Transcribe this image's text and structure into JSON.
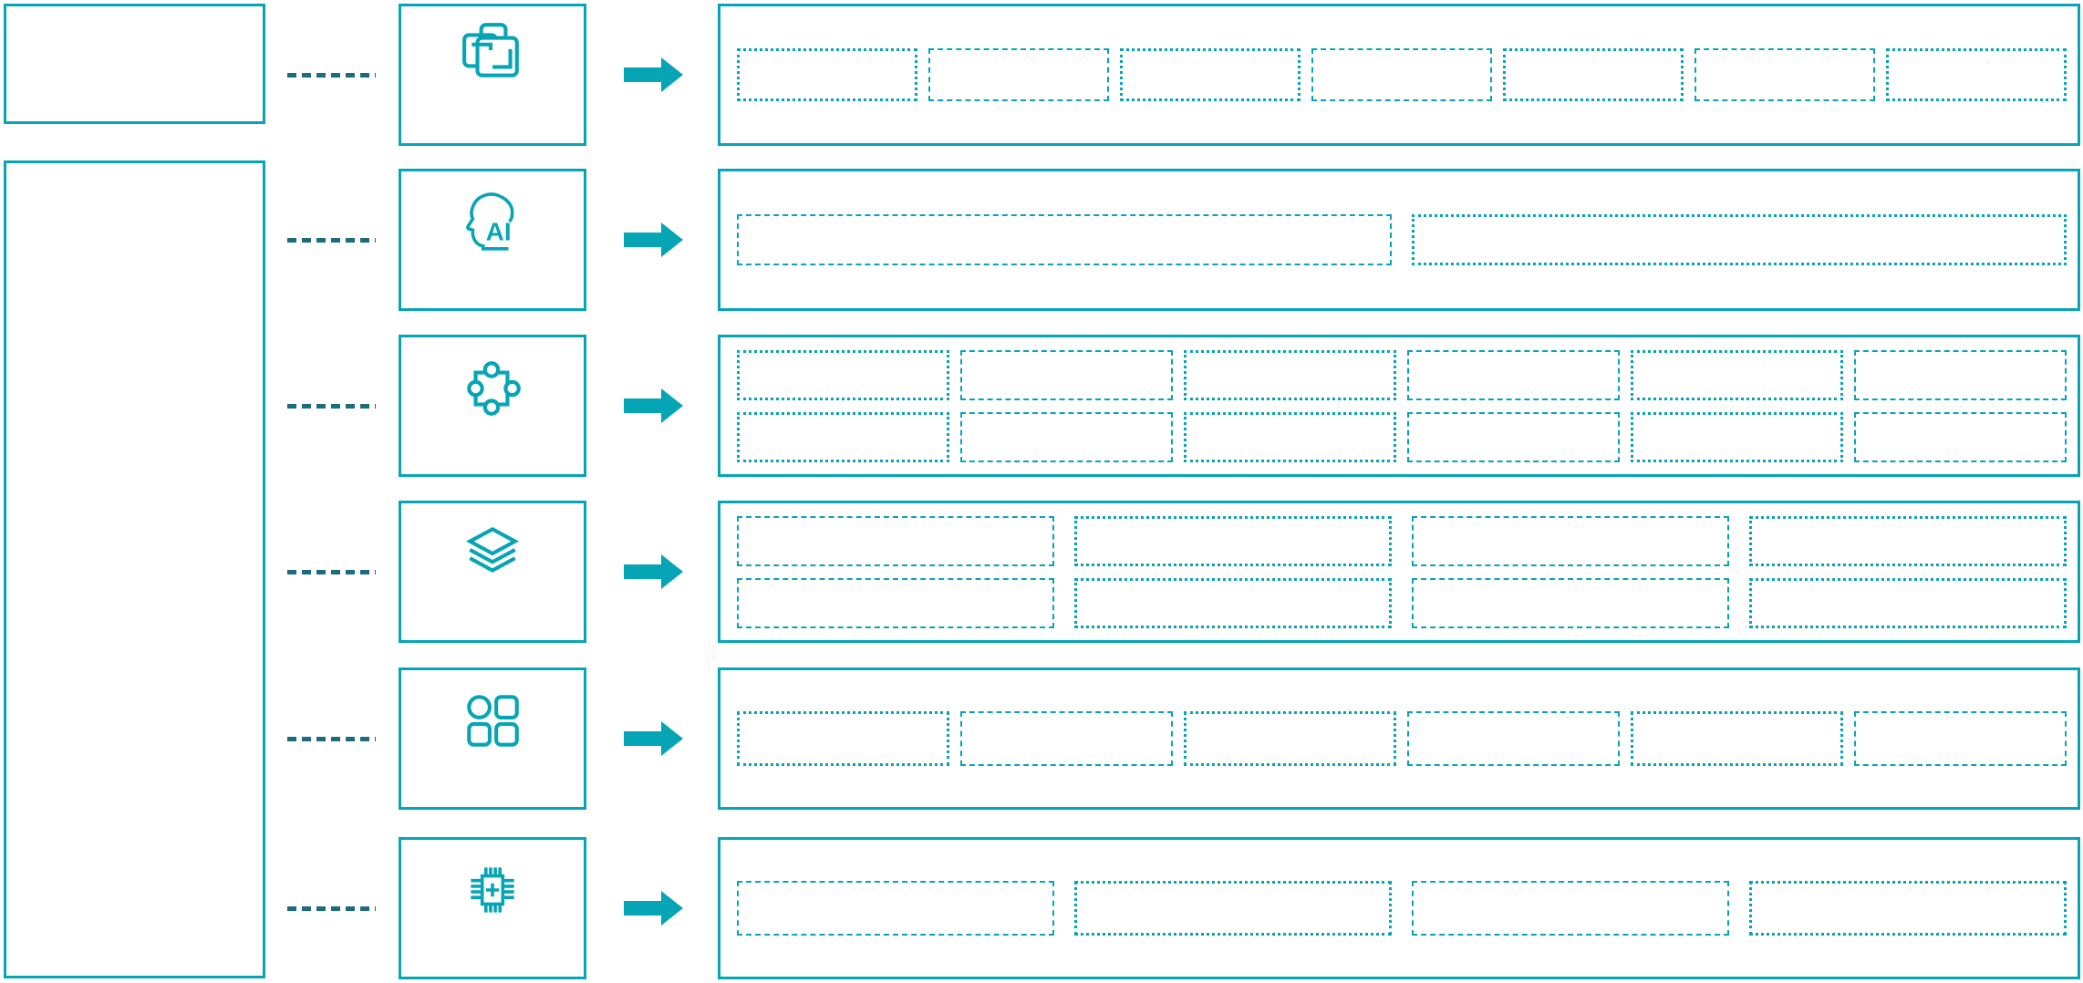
{
  "diagram": {
    "background": "#ffffff",
    "colors": {
      "accent": "#06a5b6",
      "connector_dark": "#1d6b7e",
      "arrow": "#06a5b6"
    },
    "left_panel": {
      "top_box": {
        "name": "left-top-box"
      },
      "tall_box": {
        "name": "left-tall-box"
      }
    },
    "rows": [
      {
        "icon": "overlap-squares-icon",
        "placeholders": {
          "columns": 7,
          "rows": 1
        }
      },
      {
        "icon": "ai-head-icon",
        "icon_text": "AI",
        "placeholders": {
          "columns": 2,
          "rows": 1
        }
      },
      {
        "icon": "puzzle-icon",
        "placeholders": {
          "columns": 6,
          "rows": 2
        }
      },
      {
        "icon": "layers-icon",
        "placeholders": {
          "columns": 4,
          "rows": 2
        }
      },
      {
        "icon": "app-grid-icon",
        "placeholders": {
          "columns": 6,
          "rows": 1
        }
      },
      {
        "icon": "chip-plus-icon",
        "placeholders": {
          "columns": 4,
          "rows": 1
        }
      }
    ]
  }
}
